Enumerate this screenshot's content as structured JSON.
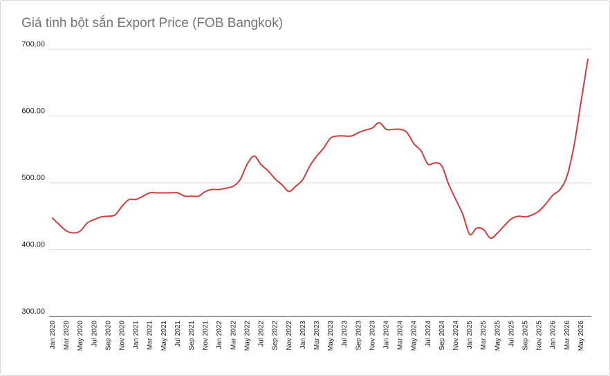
{
  "chart_data": {
    "type": "line",
    "title": "Giá tinh bột sắn Export Price (FOB Bangkok)",
    "xlabel": "",
    "ylabel": "",
    "ylim": [
      300,
      700
    ],
    "yticks": [
      "300.00",
      "400.00",
      "500.00",
      "600.00",
      "700.00"
    ],
    "grid": true,
    "legend": "none",
    "x_tick_labels": [
      "Jan 2020",
      "Mar 2020",
      "May 2020",
      "Jul 2020",
      "Sep 2020",
      "Nov 2020",
      "Jan 2021",
      "Mar 2021",
      "May 2021",
      "Jul 2021",
      "Sep 2021",
      "Nov 2021",
      "Jan 2022",
      "Mar 2022",
      "May 2022",
      "Jul 2022",
      "Sep 2022",
      "Nov 2022",
      "Jan 2023",
      "Mar 2023",
      "May 2023",
      "Jul 2023",
      "Sep 2023",
      "Nov 2023",
      "Jan 2024",
      "Mar 2024",
      "May 2024",
      "Jul 2024",
      "Sep 2024",
      "Nov 2024",
      "Jan 2025",
      "Mar 2025",
      "May 2025",
      "Jul 2025",
      "Sep 2025",
      "Nov 2025",
      "Jan 2026",
      "Mar 2026",
      "May 2026"
    ],
    "series": [
      {
        "color": "#d03b3b",
        "x": [
          "Jan 2020",
          "Feb 2020",
          "Mar 2020",
          "Apr 2020",
          "May 2020",
          "Jun 2020",
          "Jul 2020",
          "Aug 2020",
          "Sep 2020",
          "Oct 2020",
          "Nov 2020",
          "Dec 2020",
          "Jan 2021",
          "Feb 2021",
          "Mar 2021",
          "Apr 2021",
          "May 2021",
          "Jun 2021",
          "Jul 2021",
          "Aug 2021",
          "Sep 2021",
          "Oct 2021",
          "Nov 2021",
          "Dec 2021",
          "Jan 2022",
          "Feb 2022",
          "Mar 2022",
          "Apr 2022",
          "May 2022",
          "Jun 2022",
          "Jul 2022",
          "Aug 2022",
          "Sep 2022",
          "Oct 2022",
          "Nov 2022",
          "Dec 2022",
          "Jan 2023",
          "Feb 2023",
          "Mar 2023",
          "Apr 2023",
          "May 2023",
          "Jun 2023",
          "Jul 2023",
          "Aug 2023",
          "Sep 2023",
          "Oct 2023",
          "Nov 2023",
          "Dec 2023",
          "Jan 2024",
          "Feb 2024",
          "Mar 2024",
          "Apr 2024",
          "May 2024",
          "Jun 2024",
          "Jul 2024",
          "Aug 2024",
          "Sep 2024",
          "Oct 2024",
          "Nov 2024",
          "Dec 2024",
          "Jan 2025",
          "Feb 2025",
          "Mar 2025",
          "Apr 2025",
          "May 2025",
          "Jun 2025",
          "Jul 2025",
          "Aug 2025",
          "Sep 2025",
          "Oct 2025",
          "Nov 2025",
          "Dec 2025",
          "Jan 2026",
          "Feb 2026",
          "Mar 2026",
          "Apr 2026",
          "May 2026",
          "Jun 2026"
        ],
        "values": [
          447,
          437,
          428,
          425,
          428,
          440,
          445,
          449,
          450,
          452,
          465,
          475,
          475,
          480,
          485,
          485,
          485,
          485,
          485,
          480,
          480,
          480,
          487,
          490,
          490,
          492,
          495,
          505,
          528,
          540,
          527,
          518,
          506,
          497,
          487,
          495,
          505,
          525,
          540,
          552,
          567,
          570,
          570,
          570,
          575,
          579,
          582,
          590,
          580,
          580,
          580,
          575,
          558,
          548,
          528,
          530,
          525,
          497,
          475,
          453,
          423,
          432,
          430,
          417,
          425,
          436,
          446,
          450,
          449,
          452,
          458,
          469,
          482,
          490,
          510,
          555,
          620,
          685
        ]
      }
    ]
  }
}
